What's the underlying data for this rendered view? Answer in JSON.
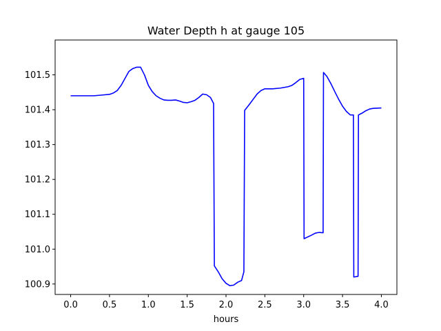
{
  "chart_data": {
    "type": "line",
    "title": "Water Depth h at gauge 105",
    "xlabel": "hours",
    "ylabel": "",
    "xlim": [
      -0.2,
      4.2
    ],
    "ylim": [
      100.87,
      101.6
    ],
    "xticks": [
      0.0,
      0.5,
      1.0,
      1.5,
      2.0,
      2.5,
      3.0,
      3.5,
      4.0
    ],
    "xtick_labels": [
      "0.0",
      "0.5",
      "1.0",
      "1.5",
      "2.0",
      "2.5",
      "3.0",
      "3.5",
      "4.0"
    ],
    "yticks": [
      100.9,
      101.0,
      101.1,
      101.2,
      101.3,
      101.4,
      101.5
    ],
    "ytick_labels": [
      "100.9",
      "101.0",
      "101.1",
      "101.2",
      "101.3",
      "101.4",
      "101.5"
    ],
    "grid": false,
    "series": [
      {
        "color": "#0000ff",
        "x": [
          0.0,
          0.1,
          0.2,
          0.3,
          0.4,
          0.5,
          0.55,
          0.6,
          0.65,
          0.7,
          0.75,
          0.8,
          0.85,
          0.9,
          0.95,
          1.0,
          1.05,
          1.1,
          1.15,
          1.2,
          1.25,
          1.3,
          1.35,
          1.4,
          1.45,
          1.5,
          1.55,
          1.6,
          1.65,
          1.7,
          1.75,
          1.8,
          1.84,
          1.85,
          1.9,
          1.95,
          2.0,
          2.05,
          2.1,
          2.15,
          2.2,
          2.23,
          2.24,
          2.3,
          2.35,
          2.4,
          2.45,
          2.5,
          2.6,
          2.7,
          2.8,
          2.85,
          2.9,
          2.95,
          3.0,
          3.005,
          3.1,
          3.15,
          3.2,
          3.25,
          3.255,
          3.3,
          3.35,
          3.4,
          3.45,
          3.5,
          3.55,
          3.6,
          3.64,
          3.645,
          3.7,
          3.705,
          3.75,
          3.8,
          3.85,
          3.9,
          4.0
        ],
        "y": [
          101.44,
          101.44,
          101.44,
          101.44,
          101.442,
          101.444,
          101.448,
          101.455,
          101.47,
          101.49,
          101.51,
          101.518,
          101.522,
          101.522,
          101.5,
          101.47,
          101.452,
          101.44,
          101.433,
          101.428,
          101.427,
          101.427,
          101.428,
          101.425,
          101.421,
          101.42,
          101.423,
          101.427,
          101.435,
          101.445,
          101.443,
          101.435,
          101.418,
          100.952,
          100.935,
          100.915,
          100.902,
          100.895,
          100.897,
          100.905,
          100.91,
          100.935,
          101.398,
          101.415,
          101.43,
          101.445,
          101.455,
          101.46,
          101.46,
          101.462,
          101.466,
          101.47,
          101.478,
          101.487,
          101.49,
          101.03,
          101.04,
          101.046,
          101.048,
          101.047,
          101.507,
          101.495,
          101.475,
          101.452,
          101.43,
          101.41,
          101.395,
          101.385,
          101.385,
          100.92,
          100.922,
          101.385,
          101.39,
          101.397,
          101.402,
          101.404,
          101.405
        ]
      }
    ]
  }
}
